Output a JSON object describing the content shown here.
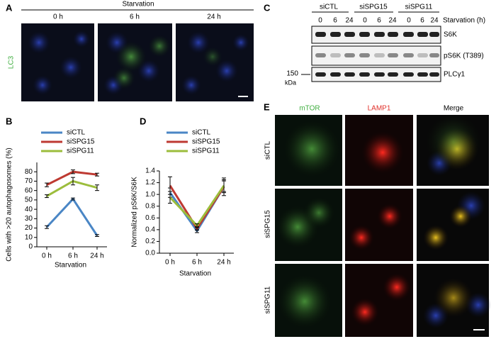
{
  "panel_labels": [
    "A",
    "B",
    "C",
    "D",
    "E"
  ],
  "panel_a": {
    "header": "Starvation",
    "columns": [
      "0 h",
      "6 h",
      "24 h"
    ],
    "row_label": "LC3"
  },
  "panel_c": {
    "groups": [
      "siCTL",
      "siSPG15",
      "siSPG11"
    ],
    "lanes": [
      "0",
      "6",
      "24"
    ],
    "axis_label": "Starvation (h)",
    "blots": [
      "S6K",
      "pS6K (T389)",
      "PLCγ1"
    ],
    "marker": "150",
    "marker_unit": "kDa"
  },
  "panel_e": {
    "columns": [
      "mTOR",
      "LAMP1",
      "Merge"
    ],
    "rows": [
      "siCTL",
      "siSPG15",
      "siSPG11"
    ]
  },
  "chart_data": [
    {
      "type": "line",
      "ylabel": "Cells with >20 autophagosomes (%)",
      "xlabel": "Starvation",
      "categories": [
        "0 h",
        "6 h",
        "24 h"
      ],
      "series": [
        {
          "name": "siCTL",
          "color": "#4a86c5",
          "values": [
            21,
            51,
            12
          ],
          "errors": [
            1.5,
            1,
            1
          ]
        },
        {
          "name": "siSPG15",
          "color": "#be3a32",
          "values": [
            66,
            80,
            77
          ],
          "errors": [
            2,
            2,
            1.5
          ]
        },
        {
          "name": "siSPG11",
          "color": "#9cbd3c",
          "values": [
            54,
            70,
            63
          ],
          "errors": [
            1.5,
            4,
            3
          ]
        }
      ],
      "ylim": [
        0,
        90
      ],
      "yticks": [
        0,
        10,
        20,
        30,
        40,
        50,
        60,
        70,
        80
      ]
    },
    {
      "type": "line",
      "ylabel": "Normalized pS6K/S6K",
      "xlabel": "Starvation",
      "categories": [
        "0 h",
        "6 h",
        "24 h"
      ],
      "series": [
        {
          "name": "siCTL",
          "color": "#4a86c5",
          "values": [
            1.03,
            0.38,
            1.13
          ],
          "errors": [
            0.08,
            0.03,
            0.15
          ]
        },
        {
          "name": "siSPG15",
          "color": "#be3a32",
          "values": [
            1.15,
            0.42,
            1.13
          ],
          "errors": [
            0.15,
            0.03,
            0.1
          ]
        },
        {
          "name": "siSPG11",
          "color": "#9cbd3c",
          "values": [
            0.95,
            0.47,
            1.15
          ],
          "errors": [
            0.1,
            0.03,
            0.1
          ]
        }
      ],
      "ylim": [
        0,
        1.4
      ],
      "yticks": [
        {
          "value": 0,
          "label": "0.0"
        },
        0.2,
        0.4,
        0.6,
        0.8,
        {
          "value": 1,
          "label": "1.0"
        },
        1.2,
        1.4
      ]
    }
  ]
}
